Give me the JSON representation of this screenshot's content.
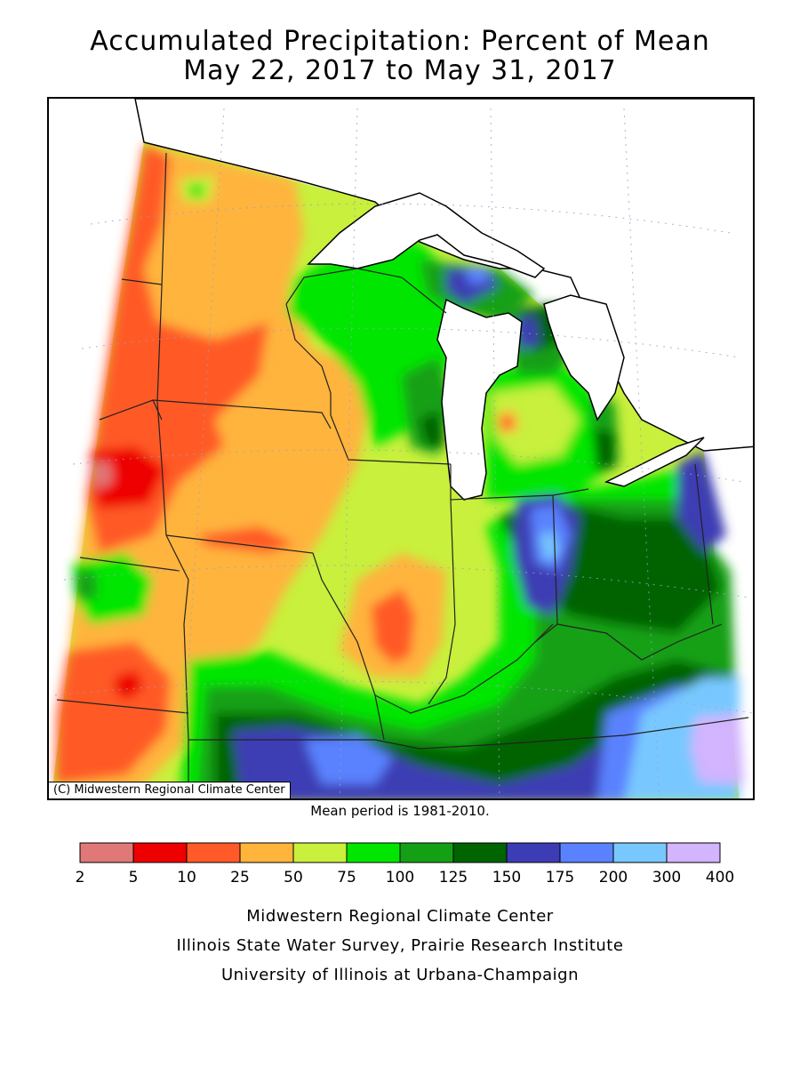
{
  "title": {
    "line1": "Accumulated Precipitation: Percent of Mean",
    "line2": "May 22, 2017 to May 31, 2017"
  },
  "map": {
    "copyright": "(C) Midwestern Regional Climate Center"
  },
  "mean_note": "Mean period is 1981-2010.",
  "legend": {
    "breaks": [
      "2",
      "5",
      "10",
      "25",
      "50",
      "75",
      "100",
      "125",
      "150",
      "175",
      "200",
      "300",
      "400"
    ],
    "colors": [
      "#e07878",
      "#ee0000",
      "#ff5a28",
      "#ffb43c",
      "#c8f03c",
      "#00e600",
      "#14a014",
      "#006400",
      "#3c3cb4",
      "#5a82ff",
      "#78c8ff",
      "#d2b4ff"
    ]
  },
  "credits": {
    "line1": "Midwestern Regional Climate Center",
    "line2": "Illinois State Water Survey, Prairie Research Institute",
    "line3": "University of Illinois at Urbana-Champaign"
  }
}
